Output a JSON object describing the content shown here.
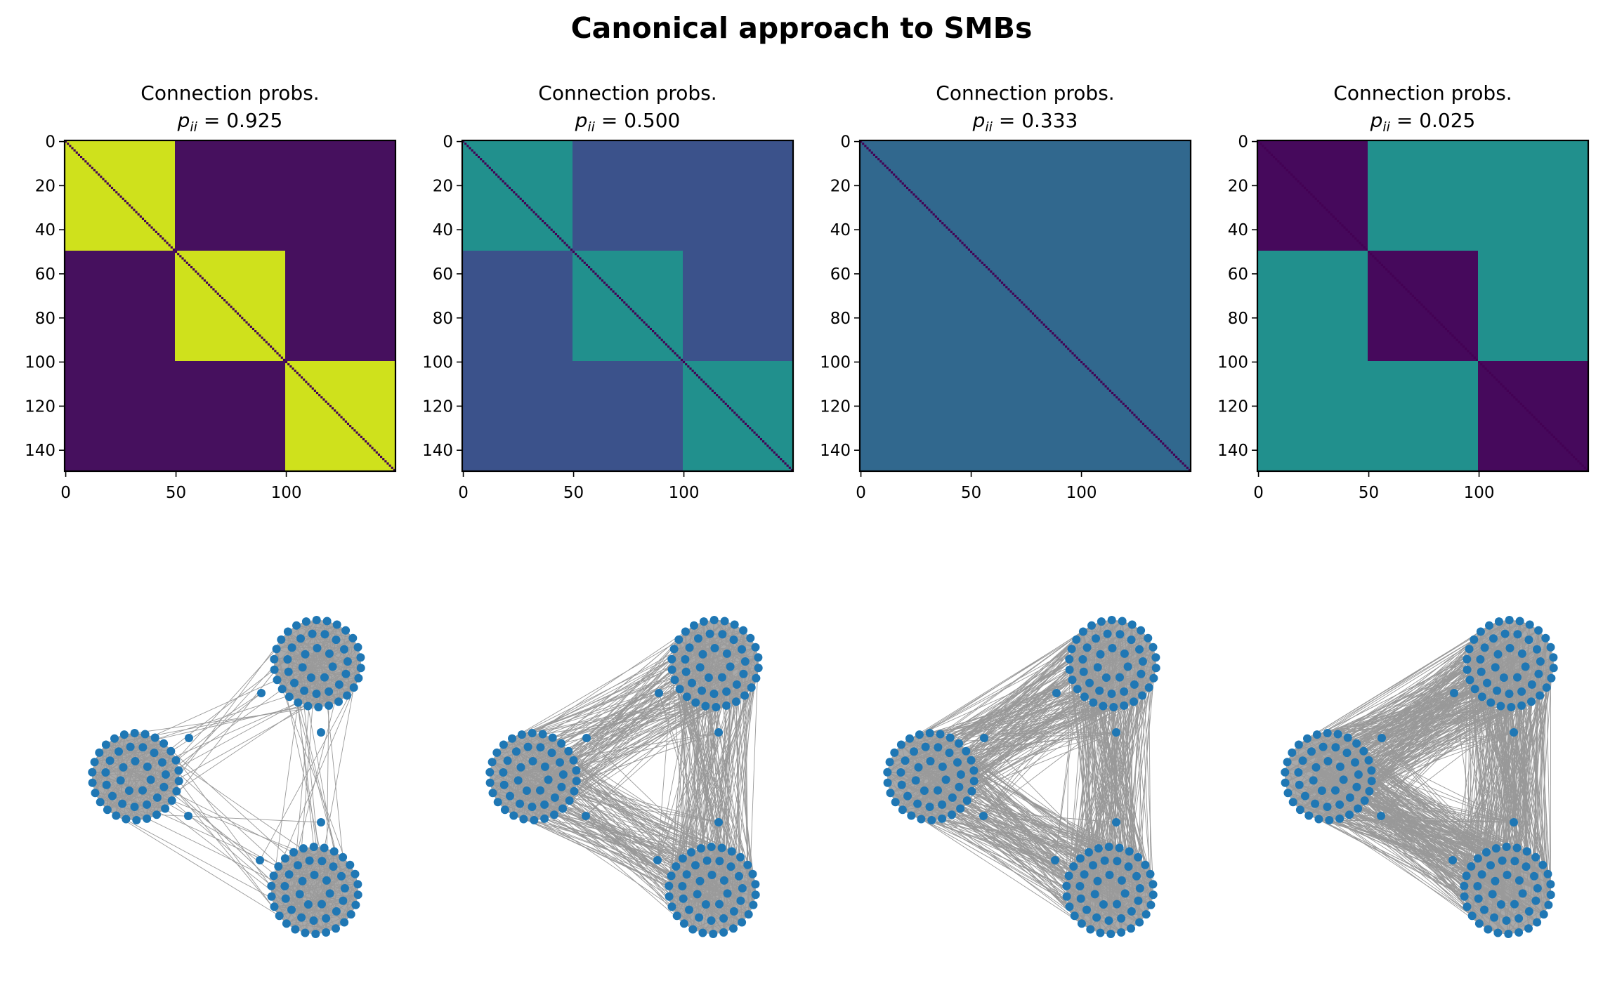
{
  "chart_data": {
    "type": "heatmap",
    "title": "Canonical approach to SMBs",
    "n_nodes": 150,
    "block_size": 50,
    "n_blocks": 3,
    "colormap": "viridis",
    "colors": {
      "node": "#1f77b4",
      "edge": "#999999",
      "diagonal": "#440154"
    },
    "panels": [
      {
        "title_line1": "Connection probs.",
        "math_symbol": "p",
        "math_subscript": "ii",
        "math_rest": " = 0.925",
        "p_ii": 0.925,
        "p_ij": 0.0375,
        "in_block_color": "#cfe11c",
        "out_block_color": "#46105e",
        "diagonal_color": "#440154",
        "edge_density": 0.15
      },
      {
        "title_line1": "Connection probs.",
        "math_symbol": "p",
        "math_subscript": "ii",
        "math_rest": " = 0.500",
        "p_ii": 0.5,
        "p_ij": 0.25,
        "in_block_color": "#21908d",
        "out_block_color": "#3b528b",
        "diagonal_color": "#440154",
        "edge_density": 1.0
      },
      {
        "title_line1": "Connection probs.",
        "math_symbol": "p",
        "math_subscript": "ii",
        "math_rest": " = 0.333",
        "p_ii": 0.333,
        "p_ij": 0.333,
        "in_block_color": "#31688e",
        "out_block_color": "#31688e",
        "diagonal_color": "#440154",
        "edge_density": 1.0
      },
      {
        "title_line1": "Connection probs.",
        "math_symbol": "p",
        "math_subscript": "ii",
        "math_rest": " = 0.025",
        "p_ii": 0.025,
        "p_ij": 0.4875,
        "in_block_color": "#46095c",
        "out_block_color": "#21908d",
        "diagonal_color": "#440154",
        "edge_density": 1.0
      }
    ],
    "x_ticks": [
      0,
      50,
      100
    ],
    "x_tick_labels": [
      "0",
      "50",
      "100"
    ],
    "y_ticks": [
      0,
      20,
      40,
      60,
      80,
      100,
      120,
      140
    ],
    "y_tick_labels": [
      "0",
      "20",
      "40",
      "60",
      "80",
      "100",
      "120",
      "140"
    ],
    "xlim": [
      -0.5,
      149.5
    ],
    "ylim": [
      149.5,
      -0.5
    ]
  }
}
